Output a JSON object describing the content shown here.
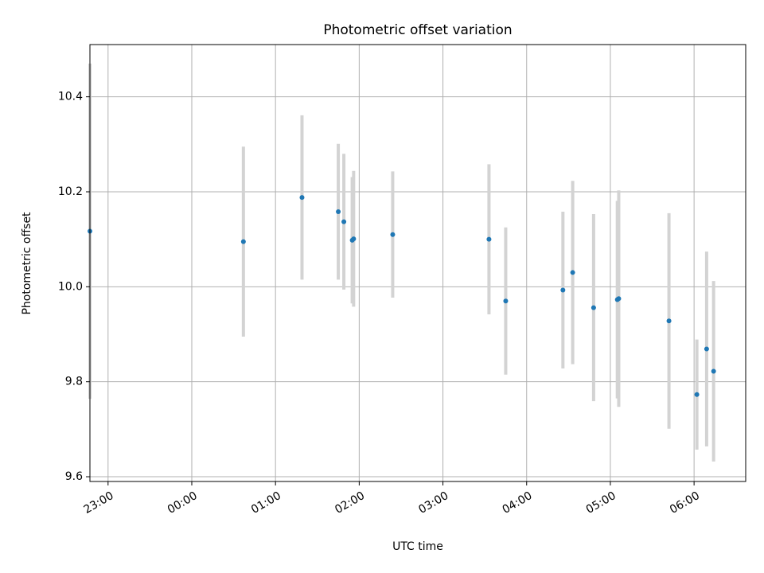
{
  "chart_data": {
    "type": "scatter",
    "title": "Photometric offset variation",
    "xlabel": "UTC time",
    "ylabel": "Photometric offset",
    "x_axis_type": "time",
    "xlim": [
      "22:47",
      "06:37"
    ],
    "ylim": [
      9.59,
      10.51
    ],
    "x_ticks": [
      "23:00",
      "00:00",
      "01:00",
      "02:00",
      "03:00",
      "04:00",
      "05:00",
      "06:00"
    ],
    "y_ticks": [
      "9.6",
      "9.8",
      "10.0",
      "10.2",
      "10.4"
    ],
    "grid": true,
    "marker_color": "#1f77b4",
    "errorbar_color": "#d3d3d3",
    "points": [
      {
        "t": "22:47",
        "y": 10.117,
        "yerr": 0.353
      },
      {
        "t": "00:37",
        "y": 10.095,
        "yerr": 0.2
      },
      {
        "t": "01:19",
        "y": 10.188,
        "yerr": 0.173
      },
      {
        "t": "01:45",
        "y": 10.158,
        "yerr": 0.143
      },
      {
        "t": "01:49",
        "y": 10.137,
        "yerr": 0.143
      },
      {
        "t": "01:55",
        "y": 10.098,
        "yerr": 0.133
      },
      {
        "t": "01:56",
        "y": 10.101,
        "yerr": 0.143
      },
      {
        "t": "02:24",
        "y": 10.11,
        "yerr": 0.133
      },
      {
        "t": "03:33",
        "y": 10.1,
        "yerr": 0.158
      },
      {
        "t": "03:45",
        "y": 9.97,
        "yerr": 0.155
      },
      {
        "t": "04:26",
        "y": 9.993,
        "yerr": 0.165
      },
      {
        "t": "04:33",
        "y": 10.03,
        "yerr": 0.193
      },
      {
        "t": "04:48",
        "y": 9.956,
        "yerr": 0.197
      },
      {
        "t": "05:05",
        "y": 9.973,
        "yerr": 0.208
      },
      {
        "t": "05:06",
        "y": 9.975,
        "yerr": 0.228
      },
      {
        "t": "05:42",
        "y": 9.928,
        "yerr": 0.227
      },
      {
        "t": "06:02",
        "y": 9.773,
        "yerr": 0.116
      },
      {
        "t": "06:09",
        "y": 9.869,
        "yerr": 0.205
      },
      {
        "t": "06:14",
        "y": 9.822,
        "yerr": 0.19
      }
    ]
  }
}
